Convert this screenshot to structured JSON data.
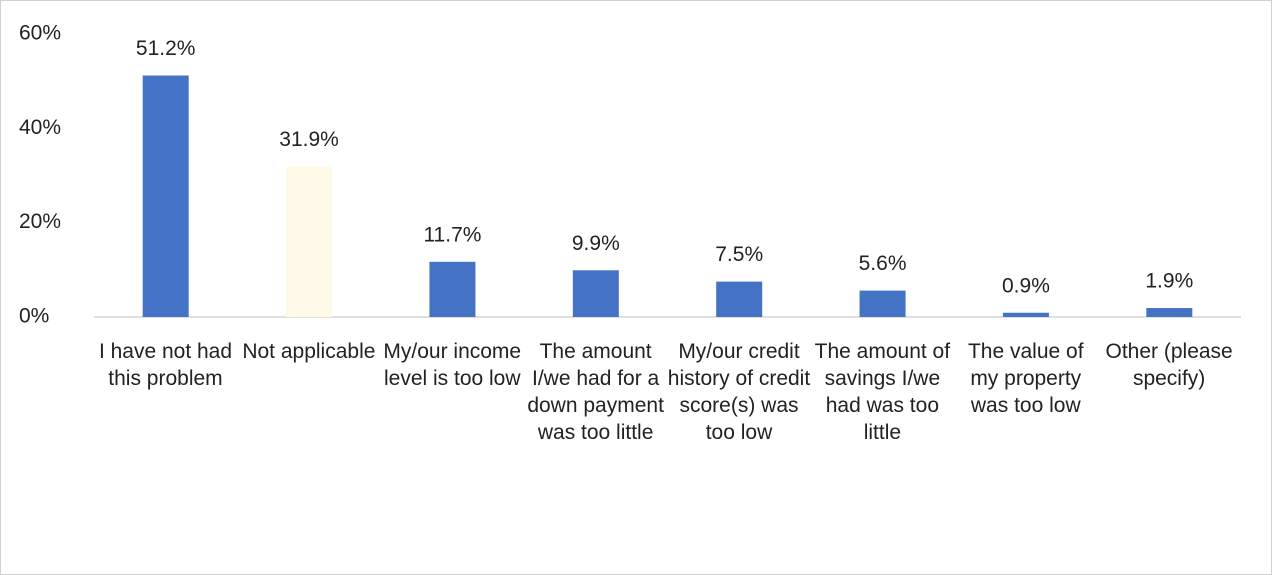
{
  "chart_data": {
    "type": "bar",
    "categories": [
      "I have not had this problem",
      "Not applicable",
      "My/our income level is too low",
      "The amount I/we had for a down payment was too little",
      "My/our credit history of credit score(s) was too low",
      "The amount of savings I/we had was too little",
      "The value of my property was too low",
      "Other (please specify)"
    ],
    "values": [
      51.2,
      31.9,
      11.7,
      9.9,
      7.5,
      5.6,
      0.9,
      1.9
    ],
    "value_labels": [
      "51.2%",
      "31.9%",
      "11.7%",
      "9.9%",
      "7.5%",
      "5.6%",
      "0.9%",
      "1.9%"
    ],
    "colors": [
      "#4472c4",
      "#fef9e8",
      "#4472c4",
      "#4472c4",
      "#4472c4",
      "#4472c4",
      "#4472c4",
      "#4472c4"
    ],
    "ylim": [
      0,
      60
    ],
    "yticks": [
      {
        "value": 0,
        "label": "0%"
      },
      {
        "value": 20,
        "label": "20%"
      },
      {
        "value": 40,
        "label": "40%"
      },
      {
        "value": 60,
        "label": "60%"
      }
    ],
    "grid": false
  }
}
